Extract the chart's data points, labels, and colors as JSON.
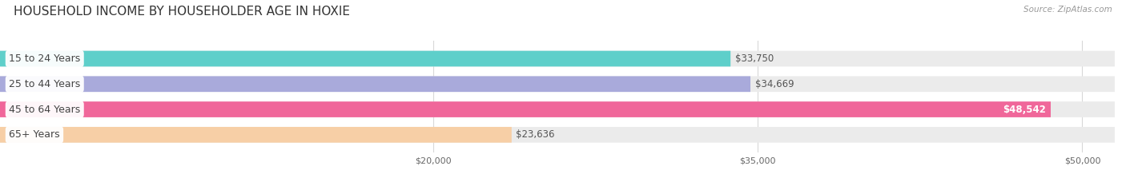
{
  "title": "HOUSEHOLD INCOME BY HOUSEHOLDER AGE IN HOXIE",
  "source": "Source: ZipAtlas.com",
  "categories": [
    "15 to 24 Years",
    "25 to 44 Years",
    "45 to 64 Years",
    "65+ Years"
  ],
  "values": [
    33750,
    34669,
    48542,
    23636
  ],
  "bar_colors": [
    "#5ecfca",
    "#a9aadb",
    "#f0679a",
    "#f7cfa6"
  ],
  "bar_bg_color": "#ebebeb",
  "value_labels": [
    "$33,750",
    "$34,669",
    "$48,542",
    "$23,636"
  ],
  "x_min": 0,
  "x_max": 51500,
  "x_ticks": [
    20000,
    35000,
    50000
  ],
  "x_tick_labels": [
    "$20,000",
    "$35,000",
    "$50,000"
  ],
  "title_fontsize": 11,
  "label_fontsize": 9,
  "bar_height": 0.62,
  "background_color": "#ffffff",
  "grid_color": "#d8d8d8",
  "label_text_color": "#444444",
  "value_text_color": "#555555"
}
